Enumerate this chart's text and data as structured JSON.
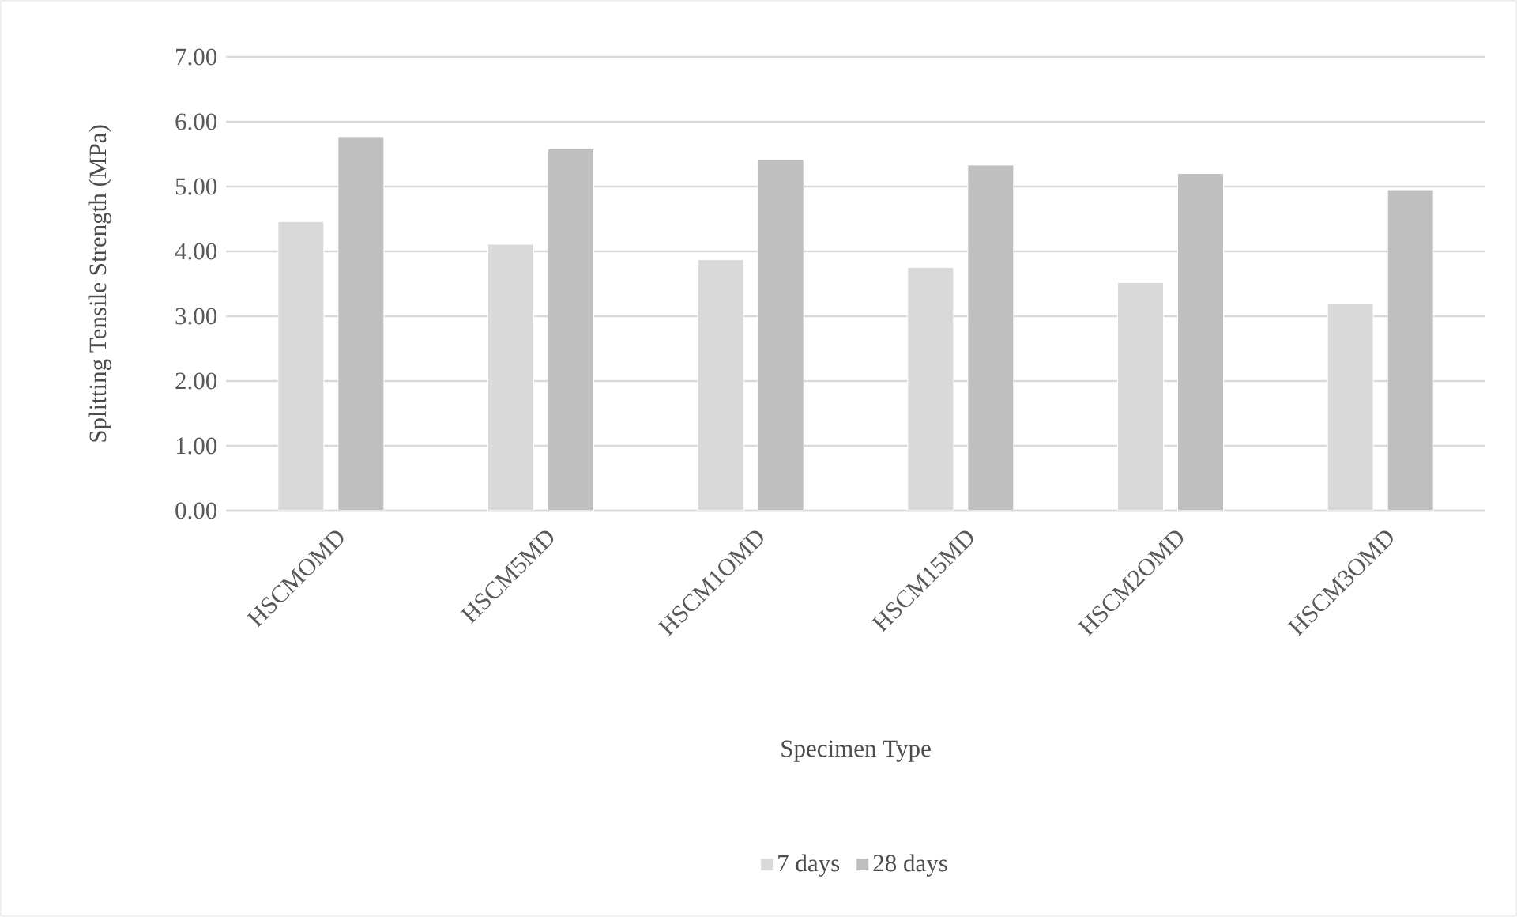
{
  "chart_data": {
    "type": "bar",
    "xlabel": "Specimen Type",
    "ylabel": "Splitting Tensile Strength (MPa)",
    "categories": [
      "HSCMOMD",
      "HSCM5MD",
      "HSCM1OMD",
      "HSCM15MD",
      "HSCM2OMD",
      "HSCM3OMD"
    ],
    "series": [
      {
        "name": "7 days",
        "color": "#d9d9d9",
        "values": [
          4.46,
          4.11,
          3.87,
          3.75,
          3.52,
          3.2
        ]
      },
      {
        "name": "28 days",
        "color": "#bfbfbf",
        "values": [
          5.77,
          5.58,
          5.41,
          5.33,
          5.2,
          4.95
        ]
      }
    ],
    "ylim": [
      0,
      7
    ],
    "yticks": [
      {
        "value": 0,
        "label": "0.00"
      },
      {
        "value": 1,
        "label": "1.00"
      },
      {
        "value": 2,
        "label": "2.00"
      },
      {
        "value": 3,
        "label": "3.00"
      },
      {
        "value": 4,
        "label": "4.00"
      },
      {
        "value": 5,
        "label": "5.00"
      },
      {
        "value": 6,
        "label": "6.00"
      },
      {
        "value": 7,
        "label": "7.00"
      }
    ],
    "grid": "y",
    "legend": "bottom"
  }
}
